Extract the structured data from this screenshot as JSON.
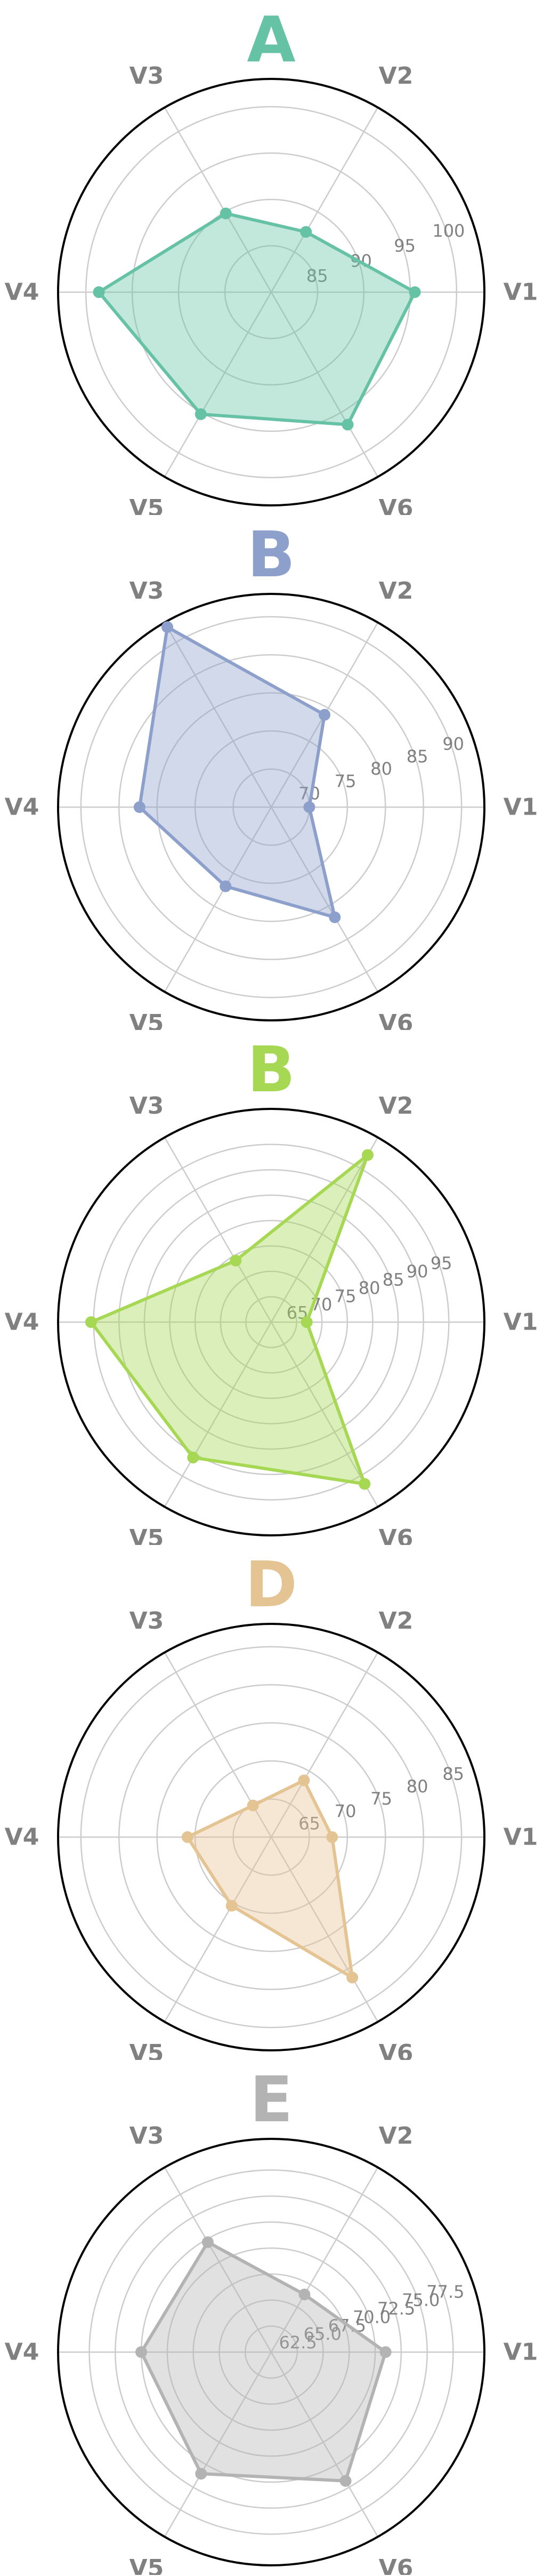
{
  "chart_data": [
    {
      "type": "radar",
      "title": "A",
      "color": "#66c2a5",
      "axes": [
        "V1",
        "V2",
        "V3",
        "V4",
        "V5",
        "V6"
      ],
      "rings": [
        85,
        90,
        95,
        100
      ],
      "ring_labels": [
        "85",
        "90",
        "95",
        "100"
      ],
      "rmin": 80,
      "rmax": 103,
      "values": [
        95.5,
        87.5,
        89.8,
        98.6,
        95.2,
        96.5
      ]
    },
    {
      "type": "radar",
      "title": "B",
      "color": "#8da0cb",
      "axes": [
        "V1",
        "V2",
        "V3",
        "V4",
        "V5",
        "V6"
      ],
      "rings": [
        70,
        75,
        80,
        85,
        90
      ],
      "ring_labels": [
        "70",
        "75",
        "80",
        "85",
        "90"
      ],
      "rmin": 65,
      "rmax": 93,
      "values": [
        70,
        79,
        92.3,
        82.3,
        77,
        81.7
      ]
    },
    {
      "type": "radar",
      "title": "B",
      "color": "#a6d854",
      "axes": [
        "V1",
        "V2",
        "V3",
        "V4",
        "V5",
        "V6"
      ],
      "rings": [
        65,
        70,
        75,
        80,
        85,
        90,
        95
      ],
      "ring_labels": [
        "65",
        "70",
        "75",
        "80",
        "85",
        "90",
        "95"
      ],
      "rmin": 60,
      "rmax": 102,
      "values": [
        67,
        98,
        74,
        95.5,
        90.8,
        96.8
      ]
    },
    {
      "type": "radar",
      "title": "D",
      "color": "#e5c494",
      "axes": [
        "V1",
        "V2",
        "V3",
        "V4",
        "V5",
        "V6"
      ],
      "rings": [
        65,
        70,
        75,
        80,
        85
      ],
      "ring_labels": [
        "65",
        "70",
        "75",
        "80",
        "85"
      ],
      "rmin": 60,
      "rmax": 88,
      "values": [
        68,
        68.6,
        64.8,
        71,
        70.4,
        81.3
      ]
    },
    {
      "type": "radar",
      "title": "E",
      "color": "#b3b3b3",
      "axes": [
        "V1",
        "V2",
        "V3",
        "V4",
        "V5",
        "V6"
      ],
      "rings": [
        62.5,
        65,
        67.5,
        70,
        72.5,
        75,
        77.5
      ],
      "ring_labels": [
        "62.5",
        "65.0",
        "67.5",
        "70.0",
        "72.5",
        "75.0",
        "77.5"
      ],
      "rmin": 60,
      "rmax": 80.5,
      "values": [
        71,
        66.4,
        72.2,
        72.5,
        73.5,
        74.3
      ]
    }
  ]
}
